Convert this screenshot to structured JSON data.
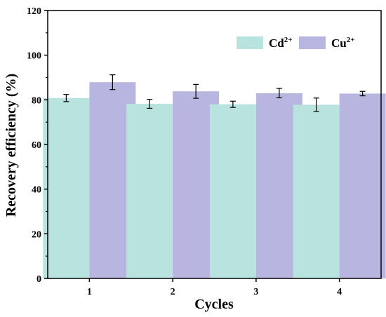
{
  "chart_data": {
    "type": "bar",
    "xlabel": "Cycles",
    "ylabel": "Recovery efficiency (%)",
    "ylim": [
      0,
      120
    ],
    "yticks": [
      0,
      20,
      40,
      60,
      80,
      100,
      120
    ],
    "categories": [
      "1",
      "2",
      "3",
      "4"
    ],
    "series": [
      {
        "name": "Cd",
        "name_sup": "2+",
        "color": "#b9e3de",
        "values": [
          80.8,
          78.2,
          78.0,
          77.8
        ],
        "errors": [
          1.6,
          2.0,
          1.4,
          3.0
        ]
      },
      {
        "name": "Cu",
        "name_sup": "2+",
        "color": "#b8b5e0",
        "values": [
          87.9,
          83.8,
          83.0,
          82.8
        ],
        "errors": [
          3.3,
          3.1,
          2.1,
          1.0
        ]
      }
    ],
    "legend_position": "top-right",
    "grid": false
  }
}
